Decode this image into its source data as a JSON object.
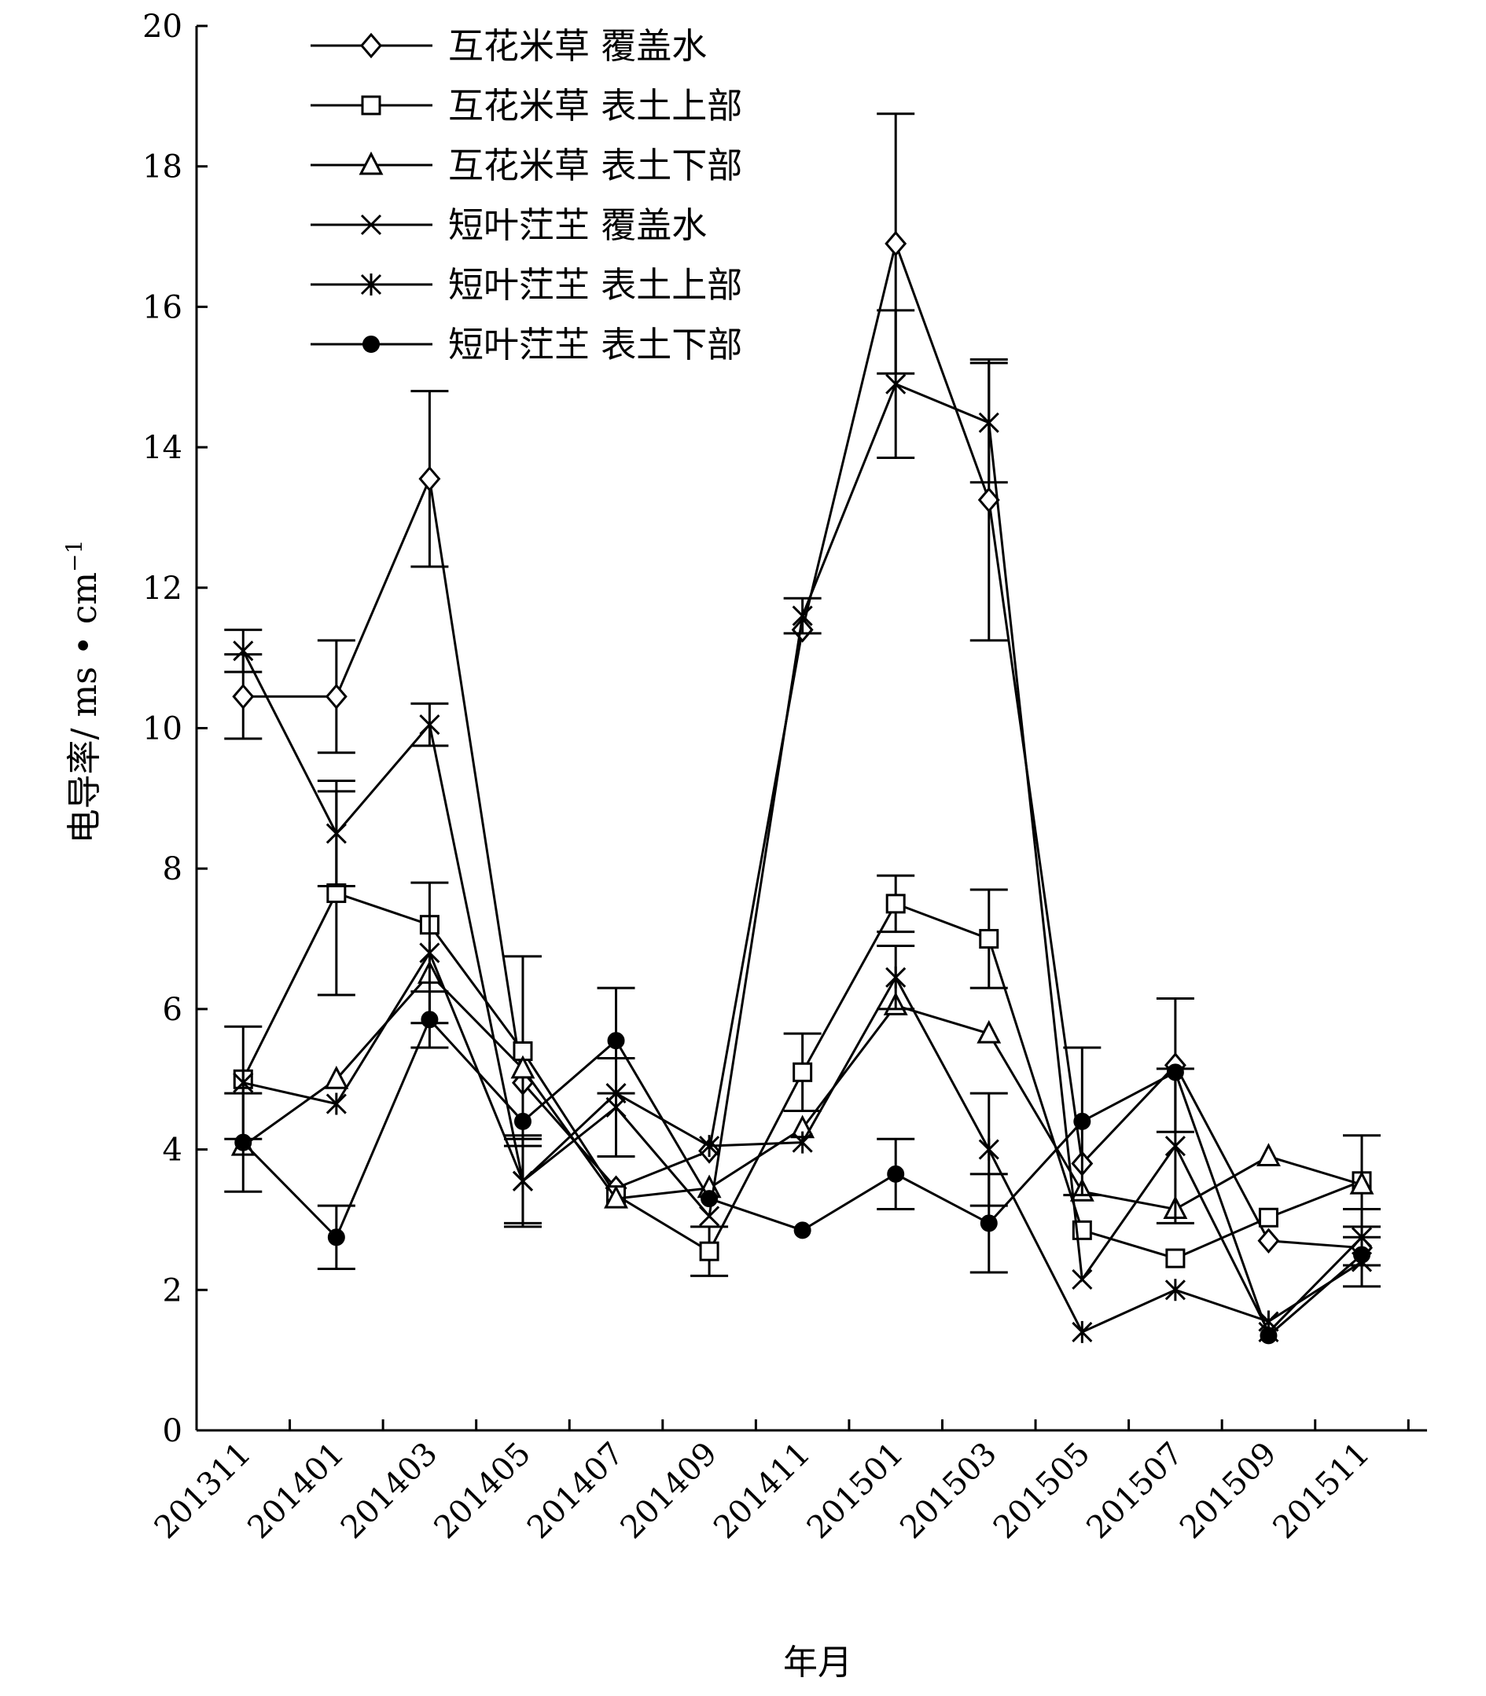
{
  "chart_data": {
    "type": "line",
    "title": "",
    "xlabel": "年月",
    "ylabel": "电导率/ ms • cm",
    "ylabel_superscript": "−1",
    "ylim": [
      0,
      20
    ],
    "yticks": [
      0,
      2,
      4,
      6,
      8,
      10,
      12,
      14,
      16,
      18,
      20
    ],
    "xtick_labels": [
      "201311",
      "201401",
      "201403",
      "201405",
      "201407",
      "201409",
      "201411",
      "201501",
      "201503",
      "201505",
      "201507",
      "201509",
      "201511"
    ],
    "x": [
      "201311",
      "201401",
      "201403",
      "201405",
      "201407",
      "201409",
      "201411",
      "201501",
      "201503",
      "201505",
      "201507",
      "201509",
      "201511"
    ],
    "grid": false,
    "legend_position": "top-left",
    "series": [
      {
        "name": "互花米草 覆盖水",
        "marker": "diamond-open",
        "values": [
          10.45,
          10.45,
          13.55,
          4.95,
          3.45,
          3.98,
          11.4,
          16.9,
          13.25,
          3.8,
          5.2,
          2.7,
          2.6
        ],
        "errors": [
          0.6,
          0.8,
          1.25,
          0.0,
          0.0,
          0.0,
          0.0,
          1.85,
          2.0,
          0.0,
          0.95,
          0.0,
          0.0
        ]
      },
      {
        "name": "互花米草 表土上部",
        "marker": "square-open",
        "values": [
          5.0,
          7.65,
          7.2,
          5.4,
          3.35,
          2.55,
          5.1,
          7.5,
          7.0,
          2.85,
          2.45,
          3.03,
          3.55
        ],
        "errors": [
          0.0,
          1.45,
          0.0,
          1.35,
          0.0,
          0.35,
          0.55,
          0.4,
          0.7,
          0.0,
          0.0,
          0.0,
          0.65
        ]
      },
      {
        "name": "互花米草 表土下部",
        "marker": "triangle-open",
        "values": [
          4.05,
          5.0,
          6.5,
          5.15,
          3.3,
          3.45,
          4.3,
          6.05,
          5.65,
          3.4,
          3.15,
          3.9,
          3.5
        ],
        "errors": [
          0.0,
          0.0,
          0.0,
          0.0,
          0.0,
          0.0,
          0.0,
          0.0,
          0.0,
          0.0,
          0.0,
          0.0,
          0.0
        ]
      },
      {
        "name": "短叶茳芏 覆盖水",
        "marker": "x",
        "values": [
          11.1,
          8.5,
          10.05,
          3.55,
          4.6,
          3.05,
          11.6,
          14.9,
          14.35,
          2.15,
          4.05,
          1.4,
          2.75
        ],
        "errors": [
          0.3,
          0.75,
          0.3,
          0.65,
          0.7,
          0.0,
          0.25,
          1.05,
          0.85,
          0.0,
          1.1,
          0.0,
          0.4
        ]
      },
      {
        "name": "短叶茳芏 表土上部",
        "marker": "asterisk",
        "values": [
          4.95,
          4.65,
          6.8,
          3.55,
          4.8,
          4.05,
          4.1,
          6.45,
          4.0,
          1.4,
          2.0,
          1.55,
          2.4
        ],
        "errors": [
          0.8,
          0.0,
          1.0,
          0.6,
          0.0,
          0.0,
          0.0,
          0.45,
          0.8,
          0.0,
          0.0,
          0.0,
          0.35
        ]
      },
      {
        "name": "短叶茳芏 表土下部",
        "marker": "dot-filled",
        "values": [
          4.1,
          2.75,
          5.85,
          4.4,
          5.55,
          3.3,
          2.85,
          3.65,
          2.95,
          4.4,
          5.1,
          1.35,
          2.5
        ],
        "errors": [
          0.7,
          0.45,
          0.4,
          0.0,
          0.75,
          0.0,
          0.0,
          0.5,
          0.7,
          1.05,
          0.0,
          0.0,
          0.0
        ]
      }
    ]
  }
}
